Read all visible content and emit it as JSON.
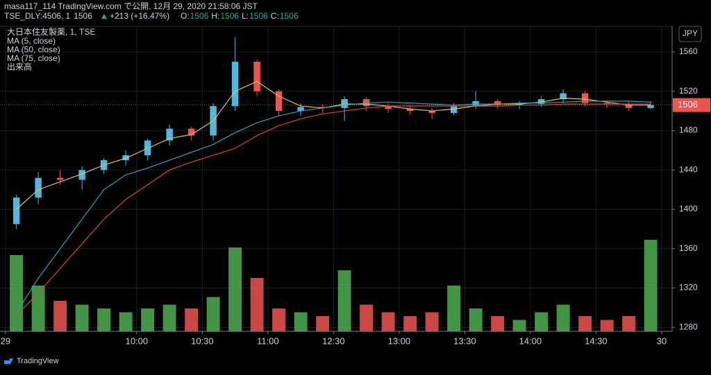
{
  "header": {
    "published": "masa117_114 TradingView.com で公開, 12月 29, 2020 21:58:06 JST",
    "symbol": "TSE_DLY:4506, 1",
    "last": "1506",
    "change": "+213 (+16.47%)",
    "ohlc": [
      {
        "label": "O:",
        "value": "1506"
      },
      {
        "label": "H:",
        "value": "1506"
      },
      {
        "label": "L:",
        "value": "1506"
      },
      {
        "label": "C:",
        "value": "1506"
      }
    ]
  },
  "chart_data": {
    "type": "candlestick",
    "symbol_label": "大日本住友製薬, 1, TSE",
    "volume_name": "出来高",
    "currency": "JPY",
    "up_color": "#4fb8e0",
    "down_color": "#ef5350",
    "volume_up_color": "#4caf50",
    "volume_down_color": "#ef5350",
    "x": [
      5,
      15,
      25,
      35,
      45,
      55,
      65,
      75,
      85,
      95,
      105,
      115,
      125,
      135,
      145,
      155,
      165,
      175,
      185,
      195,
      205,
      215,
      225,
      235,
      245,
      255,
      265,
      275,
      285,
      295
    ],
    "open": [
      1385,
      1412,
      1432,
      1430,
      1440,
      1450,
      1455,
      1470,
      1482,
      1475,
      1505,
      1550,
      1520,
      1500,
      1504,
      1503,
      1512,
      1505,
      1502,
      1500,
      1498,
      1505,
      1510,
      1506,
      1507,
      1512,
      1518,
      1508,
      1507,
      1503
    ],
    "high": [
      1415,
      1438,
      1440,
      1444,
      1452,
      1460,
      1472,
      1486,
      1484,
      1508,
      1575,
      1552,
      1522,
      1508,
      1507,
      1515,
      1514,
      1508,
      1506,
      1503,
      1508,
      1520,
      1512,
      1510,
      1515,
      1522,
      1520,
      1510,
      1510,
      1510
    ],
    "low": [
      1380,
      1405,
      1425,
      1420,
      1436,
      1445,
      1450,
      1465,
      1470,
      1470,
      1500,
      1515,
      1495,
      1495,
      1498,
      1490,
      1500,
      1498,
      1496,
      1492,
      1496,
      1502,
      1503,
      1502,
      1504,
      1508,
      1505,
      1503,
      1500,
      1502
    ],
    "close": [
      1412,
      1432,
      1430,
      1440,
      1450,
      1455,
      1470,
      1482,
      1475,
      1505,
      1550,
      1520,
      1500,
      1504,
      1503,
      1512,
      1505,
      1502,
      1500,
      1498,
      1505,
      1510,
      1506,
      1507,
      1512,
      1518,
      1508,
      1507,
      1503,
      1506
    ],
    "volume": [
      100,
      60,
      40,
      35,
      30,
      25,
      30,
      35,
      30,
      45,
      110,
      70,
      30,
      25,
      20,
      80,
      35,
      25,
      20,
      25,
      60,
      30,
      20,
      15,
      25,
      35,
      20,
      15,
      20,
      120
    ],
    "series": [
      {
        "name": "MA (5, close)",
        "color": "#e8c547",
        "values": [
          1400,
          1420,
          1428,
          1436,
          1445,
          1452,
          1462,
          1472,
          1476,
          1490,
          1520,
          1530,
          1515,
          1505,
          1503,
          1507,
          1507,
          1505,
          1502,
          1500,
          1502,
          1505,
          1507,
          1507,
          1509,
          1513,
          1512,
          1509,
          1506,
          1506
        ]
      },
      {
        "name": "MA (50, close)",
        "color": "#2aa5b5",
        "values": [
          1295,
          1330,
          1360,
          1390,
          1420,
          1435,
          1442,
          1450,
          1458,
          1466,
          1478,
          1488,
          1495,
          1500,
          1503,
          1506,
          1508,
          1509,
          1508,
          1507,
          1506,
          1507,
          1507,
          1508,
          1508,
          1509,
          1510,
          1510,
          1510,
          1509
        ]
      },
      {
        "name": "MA (75, close)",
        "color": "#d9453a",
        "values": [
          1292,
          1315,
          1340,
          1365,
          1390,
          1410,
          1425,
          1440,
          1448,
          1455,
          1462,
          1475,
          1485,
          1492,
          1497,
          1500,
          1503,
          1505,
          1505,
          1505,
          1505,
          1505,
          1505,
          1506,
          1506,
          1507,
          1507,
          1507,
          1507,
          1507
        ]
      }
    ],
    "last_price": 1506,
    "xlim": [
      -2.5,
      304.8
    ],
    "ylim": [
      1276,
      1586
    ],
    "y2lim": [
      0,
      400
    ],
    "yticks": [
      1280,
      1320,
      1360,
      1400,
      1440,
      1480,
      1520,
      1560
    ],
    "xticks": [
      {
        "value": 0,
        "label": "29"
      },
      {
        "value": 60,
        "label": "10:00"
      },
      {
        "value": 90,
        "label": "10:30"
      },
      {
        "value": 120,
        "label": "11:00"
      },
      {
        "value": 150,
        "label": "12:30"
      },
      {
        "value": 180,
        "label": "13:00"
      },
      {
        "value": 210,
        "label": "13:30"
      },
      {
        "value": 240,
        "label": "14:00"
      },
      {
        "value": 270,
        "label": "14:30"
      },
      {
        "value": 300,
        "label": "30"
      }
    ],
    "grid": true
  },
  "footer": {
    "brand": "TradingView"
  }
}
